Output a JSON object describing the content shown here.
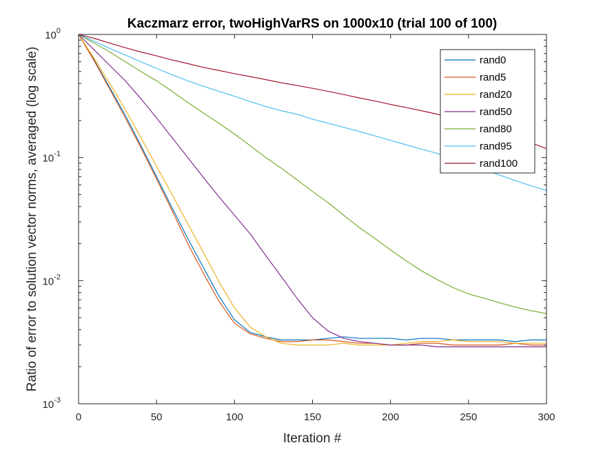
{
  "chart_data": {
    "type": "line",
    "title": "Kaczmarz error, twoHighVarRS on 1000x10 (trial 100 of 100)",
    "xlabel": "Iteration #",
    "ylabel": "Ratio of error to solution vector norms, averaged (log scale)",
    "xlim": [
      0,
      300
    ],
    "ylim": [
      0.001,
      1
    ],
    "yscale": "log",
    "xticks": [
      0,
      50,
      100,
      150,
      200,
      250,
      300
    ],
    "yticks": [
      {
        "value": 0.001,
        "base": "10",
        "exp": "-3"
      },
      {
        "value": 0.01,
        "base": "10",
        "exp": "-2"
      },
      {
        "value": 0.1,
        "base": "10",
        "exp": "-1"
      },
      {
        "value": 1,
        "base": "10",
        "exp": "0"
      }
    ],
    "grid": false,
    "legend_position": "top-right",
    "x": [
      0,
      10,
      20,
      30,
      40,
      50,
      60,
      70,
      80,
      90,
      100,
      110,
      120,
      130,
      140,
      150,
      160,
      170,
      180,
      190,
      200,
      210,
      220,
      230,
      240,
      250,
      260,
      270,
      280,
      290,
      300
    ],
    "series": [
      {
        "name": "rand0",
        "color": "#0072BD",
        "values": [
          1,
          0.62,
          0.37,
          0.22,
          0.125,
          0.07,
          0.039,
          0.022,
          0.0128,
          0.0075,
          0.0048,
          0.0038,
          0.0035,
          0.0033,
          0.0033,
          0.0033,
          0.0034,
          0.0035,
          0.0034,
          0.0034,
          0.0034,
          0.0033,
          0.0034,
          0.0034,
          0.0033,
          0.0033,
          0.0033,
          0.0033,
          0.0032,
          0.0033,
          0.0033
        ]
      },
      {
        "name": "rand5",
        "color": "#D95319",
        "values": [
          1,
          0.61,
          0.36,
          0.21,
          0.12,
          0.067,
          0.037,
          0.02,
          0.0115,
          0.0068,
          0.0045,
          0.0037,
          0.0034,
          0.0032,
          0.0032,
          0.0033,
          0.0033,
          0.0032,
          0.0031,
          0.0031,
          0.003,
          0.003,
          0.0031,
          0.0031,
          0.003,
          0.003,
          0.003,
          0.003,
          0.0031,
          0.003,
          0.003
        ]
      },
      {
        "name": "rand20",
        "color": "#EDB120",
        "values": [
          1,
          0.64,
          0.4,
          0.245,
          0.145,
          0.085,
          0.05,
          0.029,
          0.017,
          0.0098,
          0.006,
          0.0042,
          0.0035,
          0.0031,
          0.003,
          0.003,
          0.003,
          0.0031,
          0.003,
          0.003,
          0.003,
          0.0031,
          0.0032,
          0.0032,
          0.0033,
          0.0032,
          0.0032,
          0.0032,
          0.0031,
          0.0031,
          0.0031
        ]
      },
      {
        "name": "rand50",
        "color": "#7E2F8E",
        "values": [
          1,
          0.75,
          0.56,
          0.42,
          0.3,
          0.21,
          0.145,
          0.1,
          0.069,
          0.048,
          0.034,
          0.024,
          0.016,
          0.0108,
          0.0072,
          0.005,
          0.0039,
          0.0034,
          0.0032,
          0.0031,
          0.003,
          0.003,
          0.003,
          0.0029,
          0.0029,
          0.0029,
          0.0029,
          0.0029,
          0.0029,
          0.0029,
          0.0029
        ]
      },
      {
        "name": "rand80",
        "color": "#77AC30",
        "values": [
          1,
          0.85,
          0.72,
          0.6,
          0.5,
          0.42,
          0.345,
          0.28,
          0.23,
          0.19,
          0.155,
          0.125,
          0.1,
          0.082,
          0.066,
          0.053,
          0.043,
          0.034,
          0.027,
          0.022,
          0.0178,
          0.0145,
          0.012,
          0.0102,
          0.0088,
          0.0078,
          0.0072,
          0.0066,
          0.0061,
          0.0057,
          0.0054
        ]
      },
      {
        "name": "rand95",
        "color": "#4DBEEE",
        "values": [
          1,
          0.88,
          0.77,
          0.68,
          0.6,
          0.53,
          0.47,
          0.42,
          0.38,
          0.345,
          0.315,
          0.285,
          0.26,
          0.24,
          0.225,
          0.205,
          0.19,
          0.176,
          0.163,
          0.15,
          0.138,
          0.127,
          0.117,
          0.108,
          0.099,
          0.09,
          0.08,
          0.072,
          0.065,
          0.059,
          0.054
        ]
      },
      {
        "name": "rand100",
        "color": "#A2142F",
        "values": [
          1,
          0.93,
          0.85,
          0.78,
          0.72,
          0.67,
          0.62,
          0.58,
          0.54,
          0.51,
          0.48,
          0.455,
          0.43,
          0.405,
          0.385,
          0.365,
          0.345,
          0.325,
          0.305,
          0.288,
          0.27,
          0.255,
          0.24,
          0.225,
          0.21,
          0.195,
          0.18,
          0.165,
          0.148,
          0.132,
          0.118
        ]
      }
    ]
  }
}
